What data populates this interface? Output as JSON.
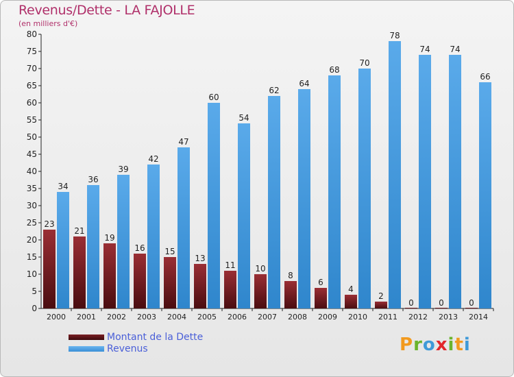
{
  "title": "Revenus/Dette - LA FAJOLLE",
  "subtitle": "(en milliers d'€)",
  "logo": "Proxiti",
  "legend": [
    {
      "label": "Montant de la Dette",
      "color": "#7a1f24"
    },
    {
      "label": "Revenus",
      "color": "#4a9fe0"
    }
  ],
  "chart_data": {
    "type": "bar",
    "categories": [
      "2000",
      "2001",
      "2002",
      "2003",
      "2004",
      "2005",
      "2006",
      "2007",
      "2008",
      "2009",
      "2010",
      "2011",
      "2012",
      "2013",
      "2014"
    ],
    "series": [
      {
        "name": "Montant de la Dette",
        "color": "#7a1f24",
        "values": [
          23,
          21,
          19,
          16,
          15,
          13,
          11,
          10,
          8,
          6,
          4,
          2,
          0,
          0,
          0
        ]
      },
      {
        "name": "Revenus",
        "color": "#4a9fe0",
        "values": [
          34,
          36,
          39,
          42,
          47,
          60,
          54,
          62,
          64,
          68,
          70,
          78,
          74,
          74,
          66
        ]
      }
    ],
    "ylim": [
      0,
      80
    ],
    "yticks": [
      0,
      5,
      10,
      15,
      20,
      25,
      30,
      35,
      40,
      45,
      50,
      55,
      60,
      65,
      70,
      75,
      80
    ],
    "grid": false,
    "legend_position": "bottom-left"
  }
}
